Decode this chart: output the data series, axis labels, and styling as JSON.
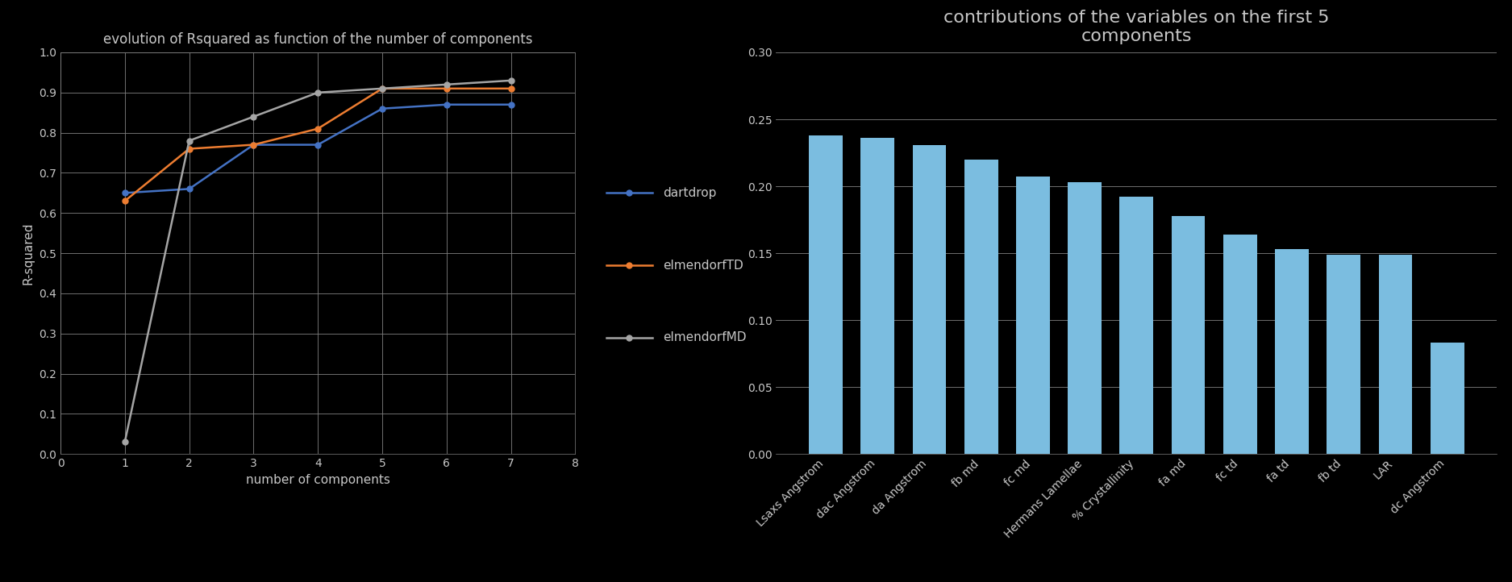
{
  "line_x": [
    1,
    2,
    3,
    4,
    5,
    6,
    7
  ],
  "dartdrop": [
    0.65,
    0.66,
    0.77,
    0.77,
    0.86,
    0.87,
    0.87
  ],
  "elmendorfTD": [
    0.63,
    0.76,
    0.77,
    0.81,
    0.91,
    0.91,
    0.91
  ],
  "elmendorfMD": [
    0.03,
    0.78,
    0.84,
    0.9,
    0.91,
    0.92,
    0.93
  ],
  "line_colors": [
    "#4472c4",
    "#ed7d31",
    "#a5a5a5"
  ],
  "line_labels": [
    "dartdrop",
    "elmendorfTD",
    "elmendorfMD"
  ],
  "line_title": "evolution of Rsquared as function of the number of components",
  "line_xlabel": "number of components",
  "line_ylabel": "R-squared",
  "line_xlim": [
    0,
    8
  ],
  "line_ylim": [
    0,
    1.0
  ],
  "line_yticks": [
    0,
    0.1,
    0.2,
    0.3,
    0.4,
    0.5,
    0.6,
    0.7,
    0.8,
    0.9,
    1
  ],
  "line_xticks": [
    0,
    1,
    2,
    3,
    4,
    5,
    6,
    7,
    8
  ],
  "bar_categories": [
    "Lsaxs Angstrom",
    "dac Angstrom",
    "da Angstrom",
    "fb md",
    "fc md",
    "Hermans Lamellae",
    "% Crystallinity",
    "fa md",
    "fc td",
    "fa td",
    "fb td",
    "LAR",
    "dc Angstrom"
  ],
  "bar_values": [
    0.238,
    0.236,
    0.231,
    0.22,
    0.207,
    0.203,
    0.192,
    0.178,
    0.164,
    0.153,
    0.149,
    0.149,
    0.083
  ],
  "bar_color": "#7bbde0",
  "bar_title": "contributions of the variables on the first 5\ncomponents",
  "bar_ylim": [
    0,
    0.3
  ],
  "bar_yticks": [
    0,
    0.05,
    0.1,
    0.15,
    0.2,
    0.25,
    0.3
  ],
  "bg_color": "#000000",
  "plot_bg_color": "#000000",
  "text_color": "#c8c8c8",
  "grid_color": "#808080",
  "title_fontsize": 12,
  "bar_title_fontsize": 16,
  "tick_fontsize": 10,
  "label_fontsize": 11,
  "legend_fontsize": 11
}
